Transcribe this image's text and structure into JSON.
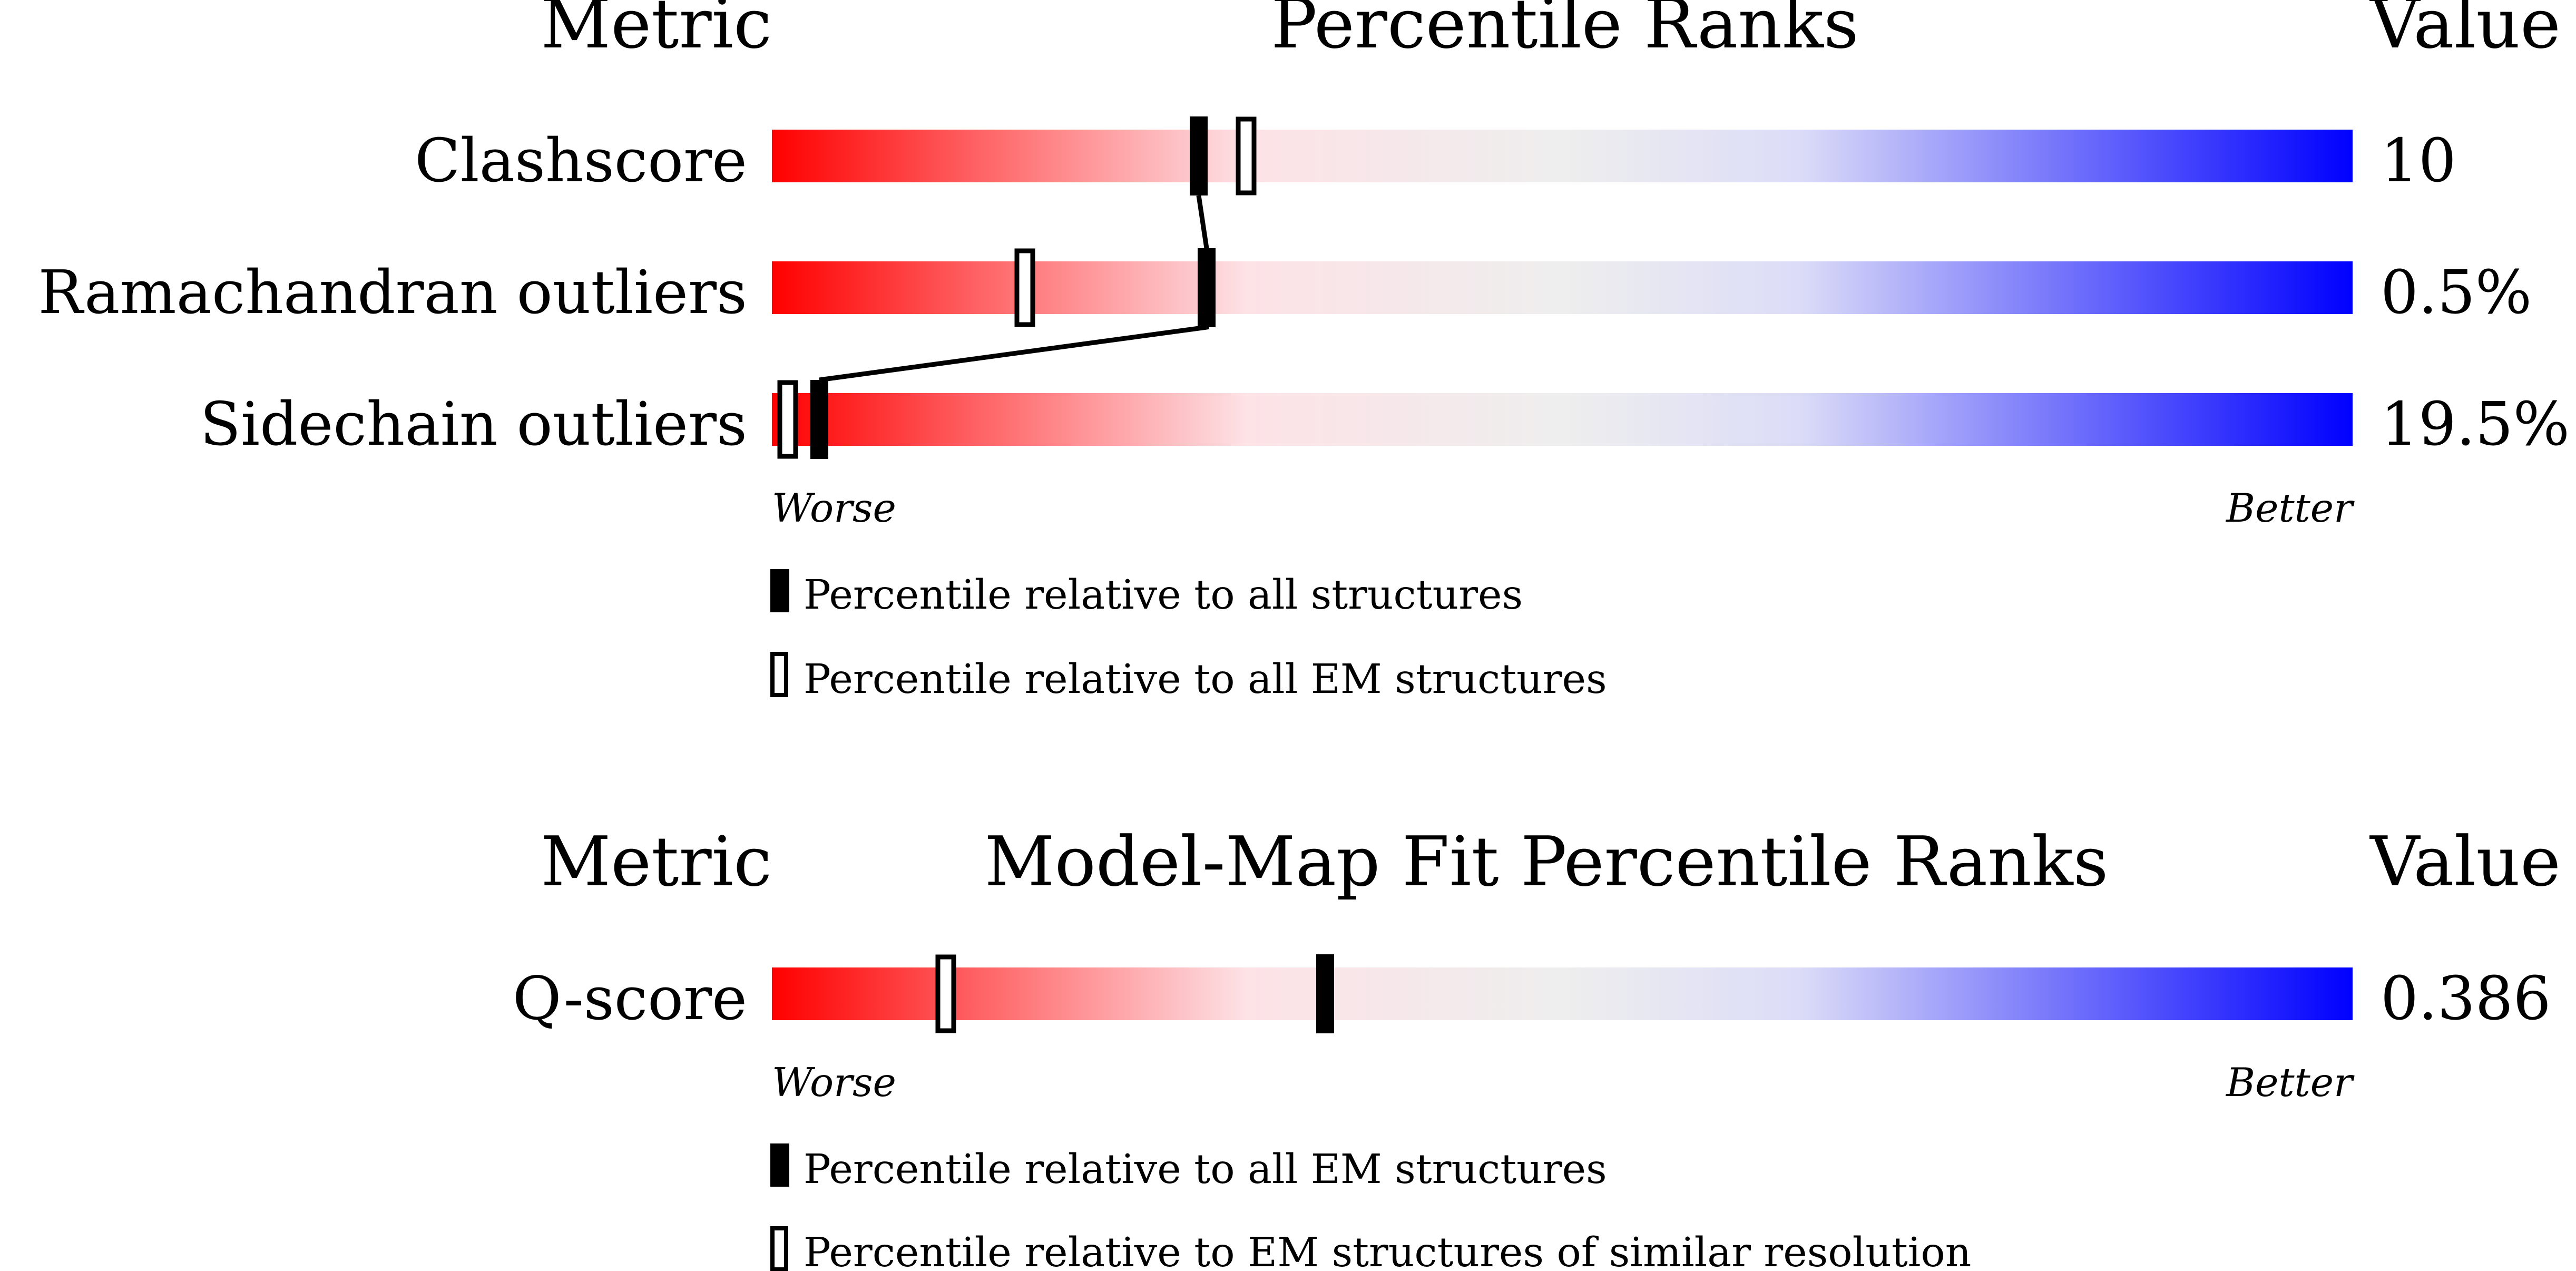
{
  "colors": {
    "worse": "#ff0000",
    "light_red": "#fde2e6",
    "neutral": "#eeeeee",
    "light_blue": "#dcdcf8",
    "better": "#0000ff",
    "marker": "#000000"
  },
  "chart_data": [
    {
      "type": "bar",
      "title": "Percentile Ranks",
      "header_left": "Metric",
      "header_right": "Value",
      "x_scale": "percentile",
      "xlim": [
        0,
        100
      ],
      "xlabel_left": "Worse",
      "xlabel_right": "Better",
      "series": [
        {
          "name": "Percentile relative to all structures",
          "marker": "filled"
        },
        {
          "name": "Percentile relative to all EM structures",
          "marker": "open"
        }
      ],
      "rows": [
        {
          "metric": "Clashscore",
          "value": "10",
          "all": 27,
          "subset": 30
        },
        {
          "metric": "Ramachandran outliers",
          "value": "0.5%",
          "all": 27.5,
          "subset": 16
        },
        {
          "metric": "Sidechain outliers",
          "value": "19.5%",
          "all": 3,
          "subset": 1
        }
      ],
      "connect_series": "all"
    },
    {
      "type": "bar",
      "title": "Model-Map Fit Percentile Ranks",
      "header_left": "Metric",
      "header_right": "Value",
      "x_scale": "percentile",
      "xlim": [
        0,
        100
      ],
      "xlabel_left": "Worse",
      "xlabel_right": "Better",
      "series": [
        {
          "name": "Percentile relative to all EM structures",
          "marker": "filled"
        },
        {
          "name": "Percentile relative to EM structures of similar resolution",
          "marker": "open"
        }
      ],
      "rows": [
        {
          "metric": "Q-score",
          "value": "0.386",
          "all": 35,
          "subset": 11
        }
      ],
      "connect_series": "all"
    }
  ]
}
